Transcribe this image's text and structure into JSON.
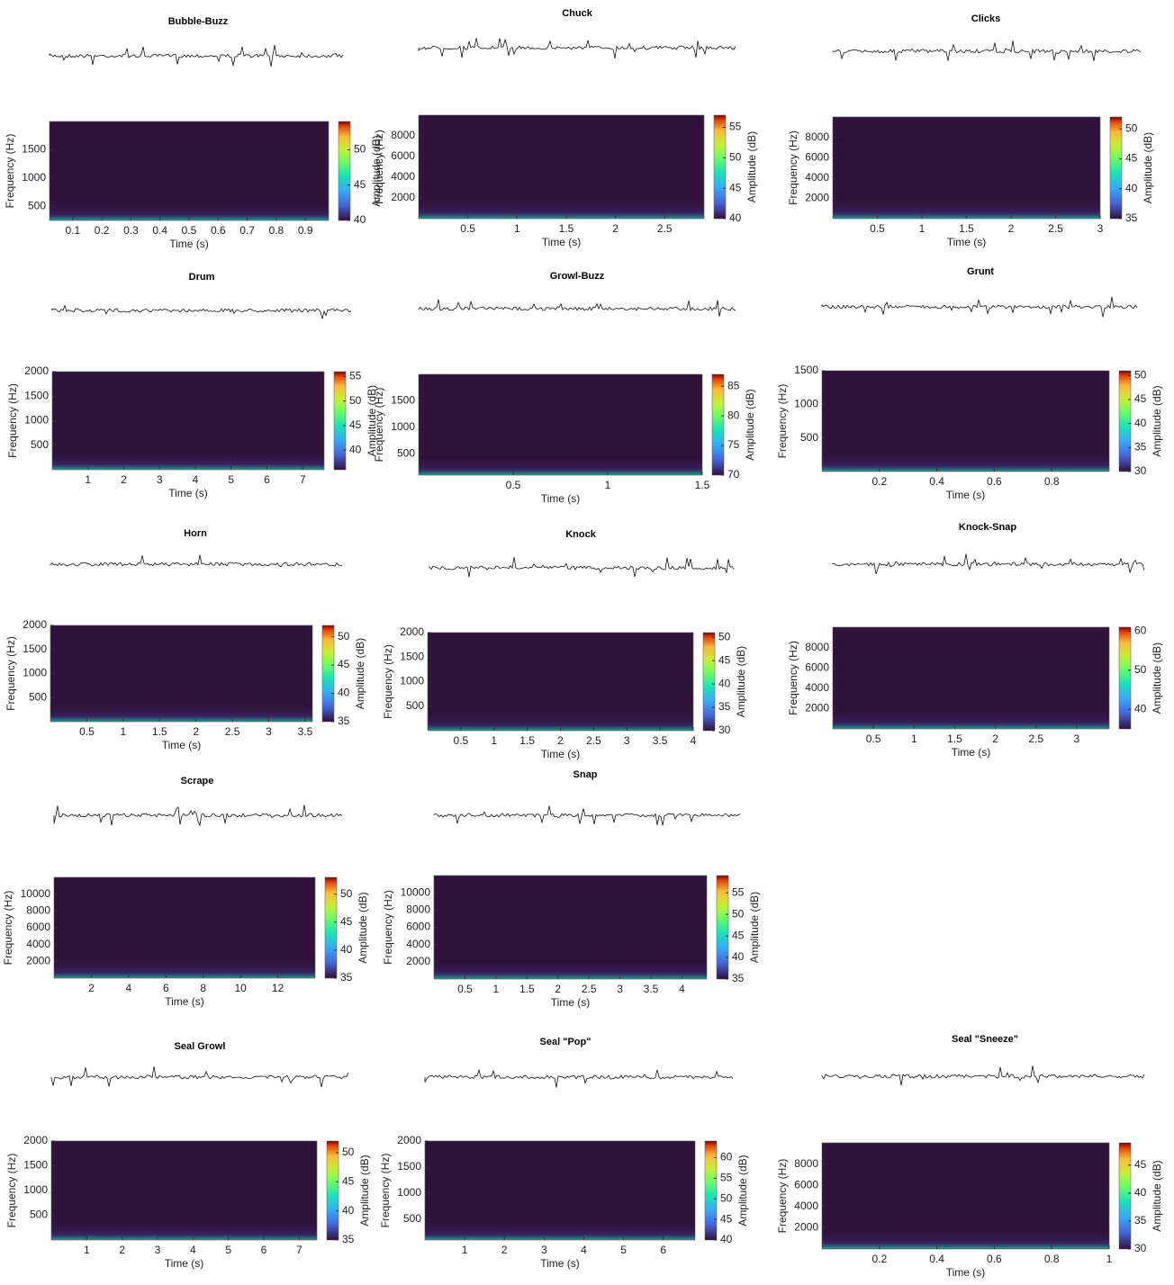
{
  "chart_data": [
    {
      "type": "spectrogram",
      "title": "Bubble-Buzz",
      "xlabel": "Time (s)",
      "ylabel": "Frequency (Hz)",
      "clabel": "Amplitude (dB)",
      "xlim": [
        0.02,
        0.98
      ],
      "xticks": [
        0.1,
        0.2,
        0.3,
        0.4,
        0.5,
        0.6,
        0.7,
        0.8,
        0.9
      ],
      "ylim": [
        250,
        2000
      ],
      "yticks": [
        500,
        1000,
        1500
      ],
      "clim": [
        40,
        54
      ],
      "cticks": [
        40,
        45,
        50
      ]
    },
    {
      "type": "spectrogram",
      "title": "Chuck",
      "xlabel": "Time (s)",
      "ylabel": "Frequency (Hz)",
      "clabel": "Amplitude (dB)",
      "xlim": [
        0,
        2.9
      ],
      "xticks": [
        0.5,
        1,
        1.5,
        2,
        2.5
      ],
      "ylim": [
        0,
        10000
      ],
      "yticks": [
        2000,
        4000,
        6000,
        8000
      ],
      "clim": [
        40,
        57
      ],
      "cticks": [
        40,
        45,
        50,
        55
      ]
    },
    {
      "type": "spectrogram",
      "title": "Clicks",
      "xlabel": "Time (s)",
      "ylabel": "Frequency (Hz)",
      "clabel": "Amplitude (dB)",
      "xlim": [
        0,
        3
      ],
      "xticks": [
        0.5,
        1,
        1.5,
        2,
        2.5,
        3
      ],
      "ylim": [
        0,
        10000
      ],
      "yticks": [
        2000,
        4000,
        6000,
        8000
      ],
      "clim": [
        35,
        52
      ],
      "cticks": [
        35,
        40,
        45,
        50
      ]
    },
    {
      "type": "spectrogram",
      "title": "Drum",
      "xlabel": "Time (s)",
      "ylabel": "Frequency (Hz)",
      "clabel": "Amplitude (dB)",
      "xlim": [
        0,
        7.6
      ],
      "xticks": [
        1,
        2,
        3,
        4,
        5,
        6,
        7
      ],
      "ylim": [
        0,
        2000
      ],
      "yticks": [
        500,
        1000,
        1500,
        2000
      ],
      "clim": [
        36,
        56
      ],
      "cticks": [
        40,
        45,
        50,
        55
      ]
    },
    {
      "type": "spectrogram",
      "title": "Growl-Buzz",
      "xlabel": "Time (s)",
      "ylabel": "Frequency (Hz)",
      "clabel": "Amplitude (dB)",
      "xlim": [
        0,
        1.5
      ],
      "xticks": [
        0.5,
        1,
        1.5
      ],
      "ylim": [
        100,
        2000
      ],
      "yticks": [
        500,
        1000,
        1500
      ],
      "clim": [
        70,
        87
      ],
      "cticks": [
        70,
        75,
        80,
        85
      ]
    },
    {
      "type": "spectrogram",
      "title": "Grunt",
      "xlabel": "Time (s)",
      "ylabel": "Frequency (Hz)",
      "clabel": "Amplitude (dB)",
      "xlim": [
        0,
        1
      ],
      "xticks": [
        0.2,
        0.4,
        0.6,
        0.8
      ],
      "ylim": [
        0,
        1500
      ],
      "yticks": [
        500,
        1000,
        1500
      ],
      "clim": [
        30,
        51
      ],
      "cticks": [
        30,
        35,
        40,
        45,
        50
      ]
    },
    {
      "type": "spectrogram",
      "title": "Horn",
      "xlabel": "Time (s)",
      "ylabel": "Frequency (Hz)",
      "clabel": "Amplitude (dB)",
      "xlim": [
        0,
        3.6
      ],
      "xticks": [
        0.5,
        1,
        1.5,
        2,
        2.5,
        3,
        3.5
      ],
      "ylim": [
        0,
        2000
      ],
      "yticks": [
        500,
        1000,
        1500,
        2000
      ],
      "clim": [
        35,
        52
      ],
      "cticks": [
        35,
        40,
        45,
        50
      ]
    },
    {
      "type": "spectrogram",
      "title": "Knock",
      "xlabel": "Time (s)",
      "ylabel": "Frequency (Hz)",
      "clabel": "Amplitude (dB)",
      "xlim": [
        0,
        4
      ],
      "xticks": [
        0.5,
        1,
        1.5,
        2,
        2.5,
        3,
        3.5,
        4
      ],
      "ylim": [
        0,
        2000
      ],
      "yticks": [
        500,
        1000,
        1500,
        2000
      ],
      "clim": [
        30,
        51
      ],
      "cticks": [
        30,
        35,
        40,
        45,
        50
      ]
    },
    {
      "type": "spectrogram",
      "title": "Knock-Snap",
      "xlabel": "Time (s)",
      "ylabel": "Frequency (Hz)",
      "clabel": "Amplitude (dB)",
      "xlim": [
        0,
        3.4
      ],
      "xticks": [
        0.5,
        1,
        1.5,
        2,
        2.5,
        3
      ],
      "ylim": [
        0,
        10000
      ],
      "yticks": [
        2000,
        4000,
        6000,
        8000
      ],
      "clim": [
        35,
        61
      ],
      "cticks": [
        40,
        50,
        60
      ]
    },
    {
      "type": "spectrogram",
      "title": "Scrape",
      "xlabel": "Time (s)",
      "ylabel": "Frequency (Hz)",
      "clabel": "Amplitude (dB)",
      "xlim": [
        0,
        14
      ],
      "xticks": [
        2,
        4,
        6,
        8,
        10,
        12
      ],
      "ylim": [
        0,
        12000
      ],
      "yticks": [
        2000,
        4000,
        6000,
        8000,
        10000
      ],
      "clim": [
        35,
        53
      ],
      "cticks": [
        35,
        40,
        45,
        50
      ]
    },
    {
      "type": "spectrogram",
      "title": "Snap",
      "xlabel": "Time (s)",
      "ylabel": "Frequency (Hz)",
      "clabel": "Amplitude (dB)",
      "xlim": [
        0,
        4.4
      ],
      "xticks": [
        0.5,
        1,
        1.5,
        2,
        2.5,
        3,
        3.5,
        4
      ],
      "ylim": [
        0,
        12000
      ],
      "yticks": [
        2000,
        4000,
        6000,
        8000,
        10000
      ],
      "clim": [
        35,
        59
      ],
      "cticks": [
        35,
        40,
        45,
        50,
        55
      ]
    },
    {
      "type": "spectrogram",
      "title": "Seal Growl",
      "xlabel": "Time (s)",
      "ylabel": "Frequency (Hz)",
      "clabel": "Amplitude (dB)",
      "xlim": [
        0,
        7.5
      ],
      "xticks": [
        1,
        2,
        3,
        4,
        5,
        6,
        7
      ],
      "ylim": [
        0,
        2000
      ],
      "yticks": [
        500,
        1000,
        1500,
        2000
      ],
      "clim": [
        35,
        52
      ],
      "cticks": [
        35,
        40,
        45,
        50
      ]
    },
    {
      "type": "spectrogram",
      "title": "Seal \"Pop\"",
      "xlabel": "Time (s)",
      "ylabel": "Frequency (Hz)",
      "clabel": "Amplitude (dB)",
      "xlim": [
        0,
        6.8
      ],
      "xticks": [
        1,
        2,
        3,
        4,
        5,
        6
      ],
      "ylim": [
        100,
        2000
      ],
      "yticks": [
        500,
        1000,
        1500,
        2000
      ],
      "clim": [
        40,
        64
      ],
      "cticks": [
        40,
        45,
        50,
        55,
        60
      ]
    },
    {
      "type": "spectrogram",
      "title": "Seal \"Sneeze\"",
      "xlabel": "Time (s)",
      "ylabel": "Frequency (Hz)",
      "clabel": "Amplitude (dB)",
      "xlim": [
        0,
        1
      ],
      "xticks": [
        0.2,
        0.4,
        0.6,
        0.8,
        1
      ],
      "ylim": [
        0,
        10000
      ],
      "yticks": [
        2000,
        4000,
        6000,
        8000
      ],
      "clim": [
        30,
        49
      ],
      "cticks": [
        30,
        35,
        40,
        45
      ]
    }
  ]
}
